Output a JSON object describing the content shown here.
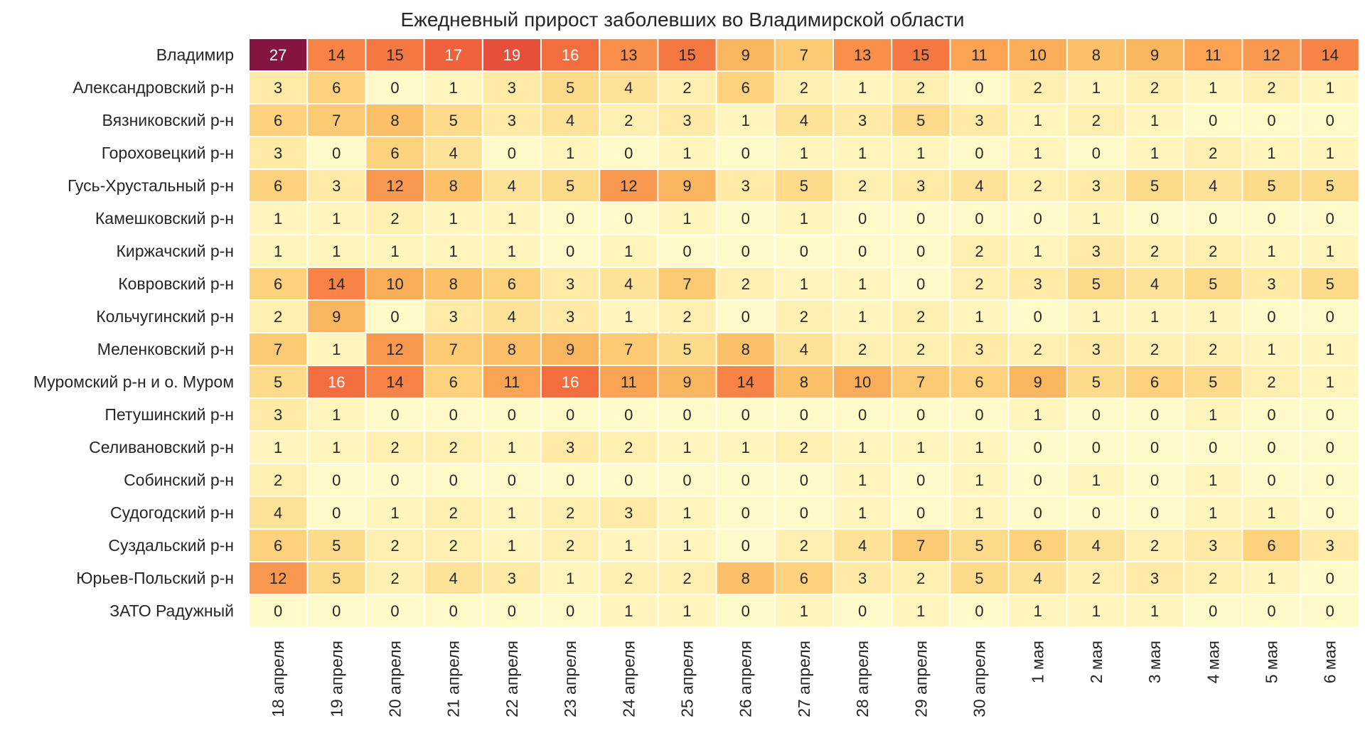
{
  "chart_data": {
    "type": "heatmap",
    "title": "Ежедневный прирост заболевших во Владимирской области",
    "xlabel": "",
    "ylabel": "",
    "watermark": "ncovladimir",
    "colormap": "YlOrRd",
    "value_range": [
      0,
      27
    ],
    "x_categories": [
      "18 апреля",
      "19 апреля",
      "20 апреля",
      "21 апреля",
      "22 апреля",
      "23 апреля",
      "24 апреля",
      "25 апреля",
      "26 апреля",
      "27 апреля",
      "28 апреля",
      "29 апреля",
      "30 апреля",
      "1 мая",
      "2 мая",
      "3 мая",
      "4 мая",
      "5 мая",
      "6 мая"
    ],
    "y_categories": [
      "Владимир",
      "Александровский р-н",
      "Вязниковский р-н",
      "Гороховецкий р-н",
      "Гусь-Хрустальный р-н",
      "Камешковский р-н",
      "Киржачский р-н",
      "Ковровский р-н",
      "Кольчугинский р-н",
      "Меленковский р-н",
      "Муромский р-н и о. Муром",
      "Петушинский р-н",
      "Селивановский р-н",
      "Собинский р-н",
      "Судогодский р-н",
      "Суздальский р-н",
      "Юрьев-Польский р-н",
      "ЗАТО Радужный"
    ],
    "values": [
      [
        27,
        14,
        15,
        17,
        19,
        16,
        13,
        15,
        9,
        7,
        13,
        15,
        11,
        10,
        8,
        9,
        11,
        12,
        14
      ],
      [
        3,
        6,
        0,
        1,
        3,
        5,
        4,
        2,
        6,
        2,
        1,
        2,
        0,
        2,
        1,
        2,
        1,
        2,
        1
      ],
      [
        6,
        7,
        8,
        5,
        3,
        4,
        2,
        3,
        1,
        4,
        3,
        5,
        3,
        1,
        2,
        1,
        0,
        0,
        0
      ],
      [
        3,
        0,
        6,
        4,
        0,
        1,
        0,
        1,
        0,
        1,
        1,
        1,
        0,
        1,
        0,
        1,
        2,
        1,
        1
      ],
      [
        6,
        3,
        12,
        8,
        4,
        5,
        12,
        9,
        3,
        5,
        2,
        3,
        4,
        2,
        3,
        5,
        4,
        5,
        5
      ],
      [
        1,
        1,
        2,
        1,
        1,
        0,
        0,
        1,
        0,
        1,
        0,
        0,
        0,
        0,
        1,
        0,
        0,
        0,
        0
      ],
      [
        1,
        1,
        1,
        1,
        1,
        0,
        1,
        0,
        0,
        0,
        0,
        0,
        2,
        1,
        3,
        2,
        2,
        1,
        1
      ],
      [
        6,
        14,
        10,
        8,
        6,
        3,
        4,
        7,
        2,
        1,
        1,
        0,
        2,
        3,
        5,
        4,
        5,
        3,
        5
      ],
      [
        2,
        9,
        0,
        3,
        4,
        3,
        1,
        2,
        0,
        2,
        1,
        2,
        1,
        0,
        1,
        1,
        1,
        0,
        0
      ],
      [
        7,
        1,
        12,
        7,
        8,
        9,
        7,
        5,
        8,
        4,
        2,
        2,
        3,
        2,
        3,
        2,
        2,
        1,
        1
      ],
      [
        5,
        16,
        14,
        6,
        11,
        16,
        11,
        9,
        14,
        8,
        10,
        7,
        6,
        9,
        5,
        6,
        5,
        2,
        1
      ],
      [
        3,
        1,
        0,
        0,
        0,
        0,
        0,
        0,
        0,
        0,
        0,
        0,
        0,
        1,
        0,
        0,
        1,
        0,
        0
      ],
      [
        1,
        1,
        2,
        2,
        1,
        3,
        2,
        1,
        1,
        2,
        1,
        1,
        1,
        0,
        0,
        0,
        0,
        0,
        0
      ],
      [
        2,
        0,
        0,
        0,
        0,
        0,
        0,
        0,
        0,
        0,
        1,
        0,
        1,
        0,
        1,
        0,
        1,
        0,
        0
      ],
      [
        4,
        0,
        1,
        2,
        1,
        2,
        3,
        1,
        0,
        0,
        1,
        0,
        1,
        0,
        0,
        0,
        1,
        1,
        0
      ],
      [
        6,
        5,
        2,
        2,
        1,
        2,
        1,
        1,
        0,
        2,
        4,
        7,
        5,
        6,
        4,
        2,
        3,
        6,
        3
      ],
      [
        12,
        5,
        2,
        4,
        3,
        1,
        2,
        2,
        8,
        6,
        3,
        2,
        5,
        4,
        2,
        3,
        2,
        1,
        0
      ],
      [
        0,
        0,
        0,
        0,
        0,
        0,
        1,
        1,
        0,
        1,
        0,
        1,
        0,
        1,
        1,
        1,
        0,
        0,
        0
      ]
    ]
  }
}
